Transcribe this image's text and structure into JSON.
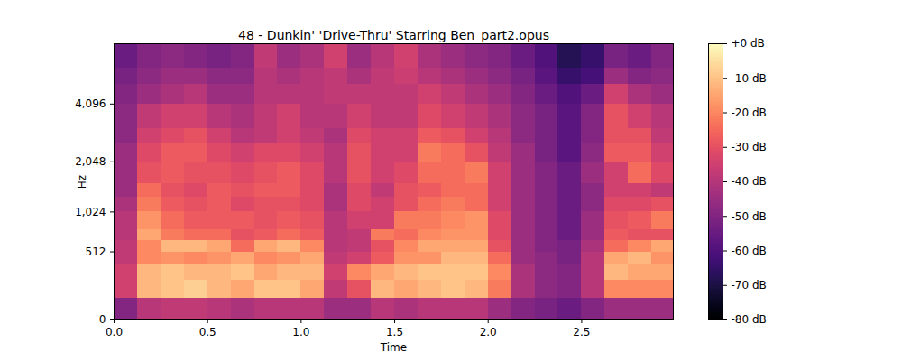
{
  "chart_data": {
    "type": "heatmap",
    "title": "48 - Dunkin' 'Drive-Thru' Starring Ben_part2.opus",
    "x_label": "Time",
    "y_label": "Hz",
    "xlim": [
      0,
      2.99
    ],
    "xticks": [
      0,
      0.5,
      1,
      1.5,
      2,
      2.5
    ],
    "ylim": [
      0,
      8000
    ],
    "yticks": [
      0,
      512,
      1024,
      2048,
      4096
    ],
    "log": "y",
    "color": "magma",
    "time_bins": [
      0,
      0.125,
      0.25,
      0.375,
      0.5,
      0.625,
      0.75,
      0.875,
      1,
      1.125,
      1.25,
      1.375,
      1.5,
      1.625,
      1.75,
      1.875,
      2,
      2.125,
      2.25,
      2.375,
      2.5,
      2.625,
      2.75,
      2.875,
      3
    ],
    "freq_bins": [
      0,
      128,
      256,
      384,
      512,
      640,
      768,
      1024,
      1280,
      1536,
      2048,
      2560,
      3072,
      4096,
      5120,
      6144,
      8000
    ],
    "cells": [
      [
        -50,
        -40,
        -38,
        -38,
        -40,
        -42,
        -40,
        -40,
        -40,
        -45,
        -45,
        -40,
        -42,
        -40,
        -40,
        -40,
        -45,
        -50,
        -52,
        -55,
        -50,
        -45,
        -45,
        -45
      ],
      [
        -35,
        -12,
        -10,
        -8,
        -12,
        -15,
        -10,
        -10,
        -15,
        -38,
        -30,
        -12,
        -15,
        -12,
        -10,
        -12,
        -22,
        -42,
        -48,
        -50,
        -40,
        -20,
        -20,
        -20
      ],
      [
        -35,
        -12,
        -10,
        -12,
        -12,
        -10,
        -15,
        -12,
        -12,
        -35,
        -20,
        -15,
        -12,
        -10,
        -10,
        -10,
        -20,
        -42,
        -48,
        -50,
        -40,
        -12,
        -15,
        -15
      ],
      [
        -38,
        -20,
        -18,
        -20,
        -18,
        -15,
        -20,
        -18,
        -15,
        -38,
        -35,
        -28,
        -18,
        -18,
        -12,
        -12,
        -25,
        -45,
        -48,
        -52,
        -40,
        -15,
        -12,
        -18
      ],
      [
        -38,
        -20,
        -12,
        -12,
        -15,
        -25,
        -15,
        -12,
        -20,
        -40,
        -38,
        -30,
        -20,
        -15,
        -15,
        -15,
        -30,
        -45,
        -50,
        -52,
        -42,
        -25,
        -20,
        -15
      ],
      [
        -40,
        -15,
        -22,
        -25,
        -25,
        -30,
        -28,
        -25,
        -28,
        -40,
        -38,
        -22,
        -25,
        -20,
        -18,
        -18,
        -32,
        -45,
        -50,
        -55,
        -45,
        -28,
        -30,
        -30
      ],
      [
        -40,
        -18,
        -25,
        -28,
        -28,
        -28,
        -30,
        -28,
        -30,
        -40,
        -35,
        -35,
        -22,
        -22,
        -20,
        -18,
        -32,
        -45,
        -50,
        -55,
        -45,
        -30,
        -28,
        -22
      ],
      [
        -42,
        -22,
        -28,
        -30,
        -28,
        -32,
        -30,
        -30,
        -32,
        -42,
        -32,
        -35,
        -30,
        -25,
        -22,
        -25,
        -35,
        -45,
        -50,
        -55,
        -48,
        -32,
        -32,
        -30
      ],
      [
        -45,
        -25,
        -30,
        -32,
        -28,
        -30,
        -28,
        -28,
        -32,
        -42,
        -32,
        -38,
        -30,
        -28,
        -25,
        -25,
        -35,
        -45,
        -50,
        -55,
        -48,
        -35,
        -35,
        -38
      ],
      [
        -45,
        -30,
        -28,
        -30,
        -30,
        -32,
        -30,
        -28,
        -32,
        -40,
        -30,
        -35,
        -32,
        -25,
        -25,
        -22,
        -35,
        -45,
        -50,
        -55,
        -45,
        -35,
        -25,
        -32
      ],
      [
        -45,
        -32,
        -28,
        -28,
        -32,
        -35,
        -32,
        -32,
        -35,
        -40,
        -30,
        -35,
        -35,
        -22,
        -25,
        -30,
        -38,
        -45,
        -52,
        -58,
        -48,
        -28,
        -28,
        -35
      ],
      [
        -48,
        -35,
        -32,
        -30,
        -35,
        -40,
        -38,
        -35,
        -38,
        -42,
        -32,
        -35,
        -35,
        -28,
        -30,
        -35,
        -40,
        -48,
        -52,
        -58,
        -50,
        -30,
        -30,
        -38
      ],
      [
        -48,
        -38,
        -35,
        -35,
        -40,
        -42,
        -38,
        -35,
        -40,
        -40,
        -35,
        -38,
        -38,
        -32,
        -35,
        -38,
        -42,
        -48,
        -52,
        -58,
        -50,
        -30,
        -35,
        -40
      ],
      [
        -50,
        -45,
        -42,
        -40,
        -45,
        -45,
        -40,
        -40,
        -40,
        -38,
        -38,
        -38,
        -38,
        -35,
        -38,
        -42,
        -45,
        -50,
        -55,
        -60,
        -55,
        -35,
        -42,
        -45
      ],
      [
        -52,
        -48,
        -45,
        -45,
        -48,
        -48,
        -40,
        -42,
        -40,
        -38,
        -42,
        -38,
        -36,
        -40,
        -42,
        -45,
        -48,
        -52,
        -58,
        -65,
        -62,
        -45,
        -50,
        -48
      ],
      [
        -55,
        -50,
        -48,
        -50,
        -52,
        -50,
        -38,
        -45,
        -42,
        -35,
        -45,
        -40,
        -35,
        -42,
        -45,
        -48,
        -50,
        -55,
        -60,
        -68,
        -65,
        -52,
        -55,
        -50
      ]
    ],
    "colorbar": {
      "range": [
        -80,
        0
      ],
      "ticks": [
        {
          "value": 0,
          "label": "+0 dB"
        },
        {
          "value": -10,
          "label": "-10 dB"
        },
        {
          "value": -20,
          "label": "-20 dB"
        },
        {
          "value": -30,
          "label": "-30 dB"
        },
        {
          "value": -40,
          "label": "-40 dB"
        },
        {
          "value": -50,
          "label": "-50 dB"
        },
        {
          "value": -60,
          "label": "-60 dB"
        },
        {
          "value": -70,
          "label": "-70 dB"
        },
        {
          "value": -80,
          "label": "-80 dB"
        }
      ]
    }
  }
}
